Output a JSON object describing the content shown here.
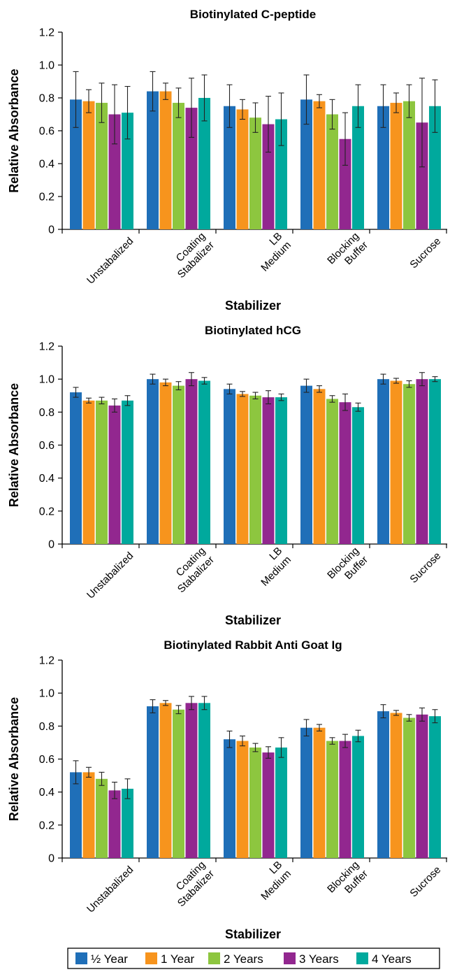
{
  "legend": [
    {
      "label": "½ Year",
      "color": "#1f6fb8"
    },
    {
      "label": "1 Year",
      "color": "#f7941d"
    },
    {
      "label": "2 Years",
      "color": "#8dc63f"
    },
    {
      "label": "3 Years",
      "color": "#92278f"
    },
    {
      "label": "4 Years",
      "color": "#00a99d"
    }
  ],
  "chart_data": [
    {
      "type": "bar",
      "title": "Biotinylated C-peptide",
      "xlabel": "Stabilizer",
      "ylabel": "Relative Absorbance",
      "ylim": [
        0,
        1.2
      ],
      "yticks": [
        "0",
        "0.2",
        "0.4",
        "0.6",
        "0.8",
        "1.0",
        "1.2"
      ],
      "categories": [
        [
          "Unstabalized"
        ],
        [
          "Coating",
          "Stabalizer"
        ],
        [
          "LB",
          "Medium"
        ],
        [
          "Blocking",
          "Buffer"
        ],
        [
          "Sucrose"
        ]
      ],
      "series": [
        {
          "name": "½ Year",
          "values": [
            0.79,
            0.84,
            0.75,
            0.79,
            0.75
          ],
          "errors": [
            0.17,
            0.12,
            0.13,
            0.15,
            0.13
          ]
        },
        {
          "name": "1 Year",
          "values": [
            0.78,
            0.84,
            0.73,
            0.78,
            0.77
          ],
          "errors": [
            0.07,
            0.05,
            0.06,
            0.04,
            0.06
          ]
        },
        {
          "name": "2 Years",
          "values": [
            0.77,
            0.77,
            0.68,
            0.7,
            0.78
          ],
          "errors": [
            0.12,
            0.09,
            0.09,
            0.09,
            0.1
          ]
        },
        {
          "name": "3 Years",
          "values": [
            0.7,
            0.74,
            0.64,
            0.55,
            0.65
          ],
          "errors": [
            0.18,
            0.18,
            0.17,
            0.16,
            0.27
          ]
        },
        {
          "name": "4 Years",
          "values": [
            0.71,
            0.8,
            0.67,
            0.75,
            0.75
          ],
          "errors": [
            0.16,
            0.14,
            0.16,
            0.13,
            0.16
          ]
        }
      ],
      "grid": false,
      "legend_position": "bottom"
    },
    {
      "type": "bar",
      "title": "Biotinylated hCG",
      "xlabel": "Stabilizer",
      "ylabel": "Relative Absorbance",
      "ylim": [
        0,
        1.2
      ],
      "yticks": [
        "0",
        "0.2",
        "0.4",
        "0.6",
        "0.8",
        "1.0",
        "1.2"
      ],
      "categories": [
        [
          "Unstabalized"
        ],
        [
          "Coating",
          "Stabalizer"
        ],
        [
          "LB",
          "Medium"
        ],
        [
          "Blocking",
          "Buffer"
        ],
        [
          "Sucrose"
        ]
      ],
      "series": [
        {
          "name": "½ Year",
          "values": [
            0.92,
            1.0,
            0.94,
            0.96,
            1.0
          ],
          "errors": [
            0.03,
            0.03,
            0.03,
            0.04,
            0.03
          ]
        },
        {
          "name": "1 Year",
          "values": [
            0.87,
            0.98,
            0.91,
            0.94,
            0.99
          ],
          "errors": [
            0.015,
            0.02,
            0.015,
            0.02,
            0.015
          ]
        },
        {
          "name": "2 Years",
          "values": [
            0.87,
            0.96,
            0.9,
            0.88,
            0.97
          ],
          "errors": [
            0.02,
            0.025,
            0.02,
            0.02,
            0.02
          ]
        },
        {
          "name": "3 Years",
          "values": [
            0.84,
            1.0,
            0.89,
            0.86,
            1.0
          ],
          "errors": [
            0.04,
            0.04,
            0.04,
            0.05,
            0.04
          ]
        },
        {
          "name": "4 Years",
          "values": [
            0.87,
            0.99,
            0.89,
            0.83,
            1.0
          ],
          "errors": [
            0.03,
            0.02,
            0.02,
            0.025,
            0.015
          ]
        }
      ],
      "grid": false,
      "legend_position": "bottom"
    },
    {
      "type": "bar",
      "title": "Biotinylated Rabbit Anti Goat Ig",
      "xlabel": "Stabilizer",
      "ylabel": "Relative Absorbance",
      "ylim": [
        0,
        1.2
      ],
      "yticks": [
        "0",
        "0.2",
        "0.4",
        "0.6",
        "0.8",
        "1.0",
        "1.2"
      ],
      "categories": [
        [
          "Unstabalized"
        ],
        [
          "Coating",
          "Stabalizer"
        ],
        [
          "LB",
          "Medium"
        ],
        [
          "Blocking",
          "Buffer"
        ],
        [
          "Sucrose"
        ]
      ],
      "series": [
        {
          "name": "½ Year",
          "values": [
            0.52,
            0.92,
            0.72,
            0.79,
            0.89
          ],
          "errors": [
            0.07,
            0.04,
            0.05,
            0.05,
            0.04
          ]
        },
        {
          "name": "1 Year",
          "values": [
            0.52,
            0.94,
            0.71,
            0.79,
            0.88
          ],
          "errors": [
            0.03,
            0.015,
            0.03,
            0.02,
            0.015
          ]
        },
        {
          "name": "2 Years",
          "values": [
            0.48,
            0.9,
            0.67,
            0.71,
            0.85
          ],
          "errors": [
            0.04,
            0.025,
            0.025,
            0.02,
            0.02
          ]
        },
        {
          "name": "3 Years",
          "values": [
            0.41,
            0.94,
            0.64,
            0.71,
            0.87
          ],
          "errors": [
            0.05,
            0.04,
            0.035,
            0.04,
            0.04
          ]
        },
        {
          "name": "4 Years",
          "values": [
            0.42,
            0.94,
            0.67,
            0.74,
            0.86
          ],
          "errors": [
            0.06,
            0.04,
            0.06,
            0.035,
            0.04
          ]
        }
      ],
      "grid": false,
      "legend_position": "bottom"
    }
  ]
}
